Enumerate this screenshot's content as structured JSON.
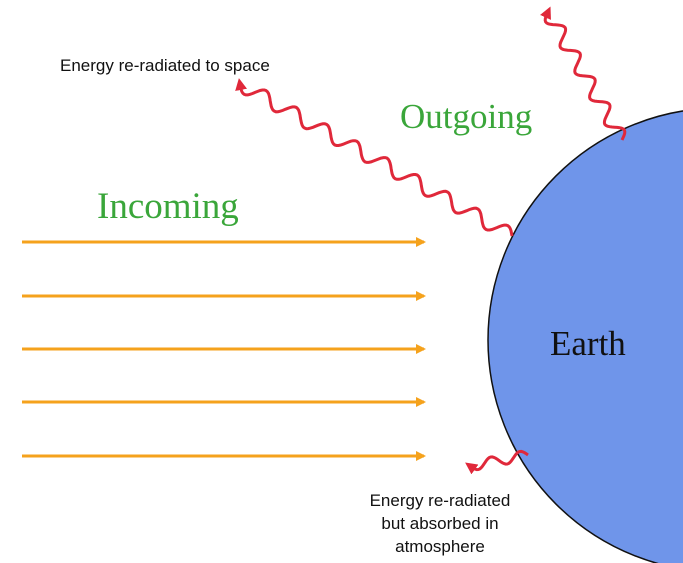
{
  "labels": {
    "space": "Energy re-radiated to space",
    "outgoing": "Outgoing",
    "incoming": "Incoming",
    "earth": "Earth",
    "absorbed": [
      "Energy re-radiated",
      "but absorbed in",
      "atmosphere"
    ]
  }
}
